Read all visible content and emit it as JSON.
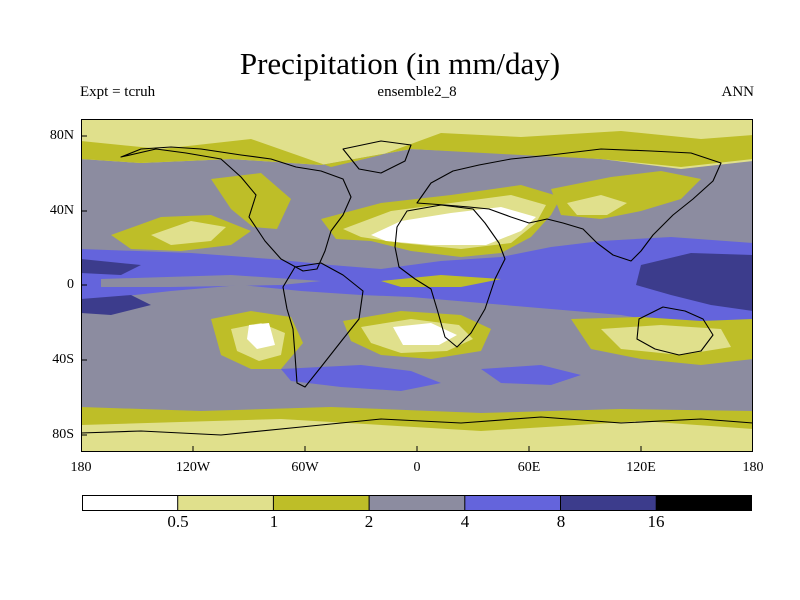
{
  "title": "Precipitation (in mm/day)",
  "experiment_label": "Expt = tcruh",
  "ensemble_label": "ensemble2_8",
  "season_label": "ANN",
  "lat_ticks": [
    "80N",
    "40N",
    "0",
    "40S",
    "80S"
  ],
  "lon_ticks": [
    "180",
    "120W",
    "60W",
    "0",
    "60E",
    "120E",
    "180"
  ],
  "colorbar": {
    "levels": [
      "0.5",
      "1",
      "2",
      "4",
      "8",
      "16"
    ],
    "colors": [
      "#ffffff",
      "#e0e08c",
      "#bebe28",
      "#8c8ca0",
      "#6464dc",
      "#3c3c8c",
      "#000000"
    ]
  },
  "palette": {
    "very_dry": "#ffffff",
    "dry": "#e0e08c",
    "low": "#bebe28",
    "moderate": "#8c8ca0",
    "wet": "#6464dc",
    "very_wet": "#3c3c8c"
  }
}
